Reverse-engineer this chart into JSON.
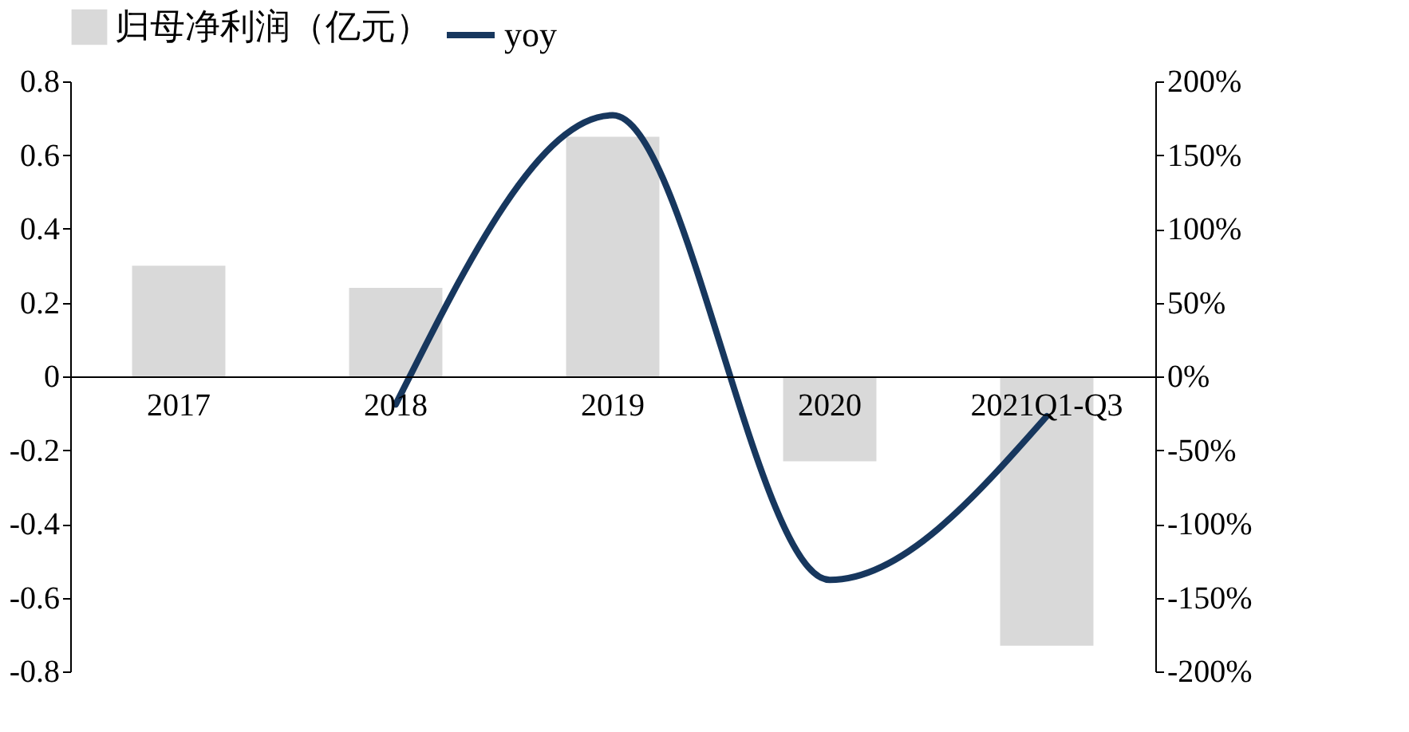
{
  "chart_data": {
    "type": "bar",
    "categories": [
      "2017",
      "2018",
      "2019",
      "2020",
      "2021Q1-Q3"
    ],
    "series": [
      {
        "name": "归母净利润（亿元）",
        "color": "#d9d9d9",
        "values": [
          0.3,
          0.24,
          0.65,
          -0.23,
          -0.73
        ]
      },
      {
        "name": "yoy",
        "type": "line",
        "axis": "y2",
        "color": "#17375e",
        "values": [
          null,
          -19,
          177,
          -138,
          -27
        ]
      }
    ],
    "ylim": [
      -0.8,
      0.8
    ],
    "yticks": [
      -0.8,
      -0.6,
      -0.4,
      -0.2,
      0,
      0.2,
      0.4,
      0.6,
      0.8
    ],
    "y2lim": [
      -200,
      200
    ],
    "y2ticks": [
      {
        "value": -200,
        "label": "-200%"
      },
      {
        "value": -150,
        "label": "-150%"
      },
      {
        "value": -100,
        "label": "-100%"
      },
      {
        "value": -50,
        "label": "-50%"
      },
      {
        "value": 0,
        "label": "0%"
      },
      {
        "value": 50,
        "label": "50%"
      },
      {
        "value": 100,
        "label": "100%"
      },
      {
        "value": 150,
        "label": "150%"
      },
      {
        "value": 200,
        "label": "200%"
      }
    ],
    "legend": "top",
    "grid": false
  }
}
